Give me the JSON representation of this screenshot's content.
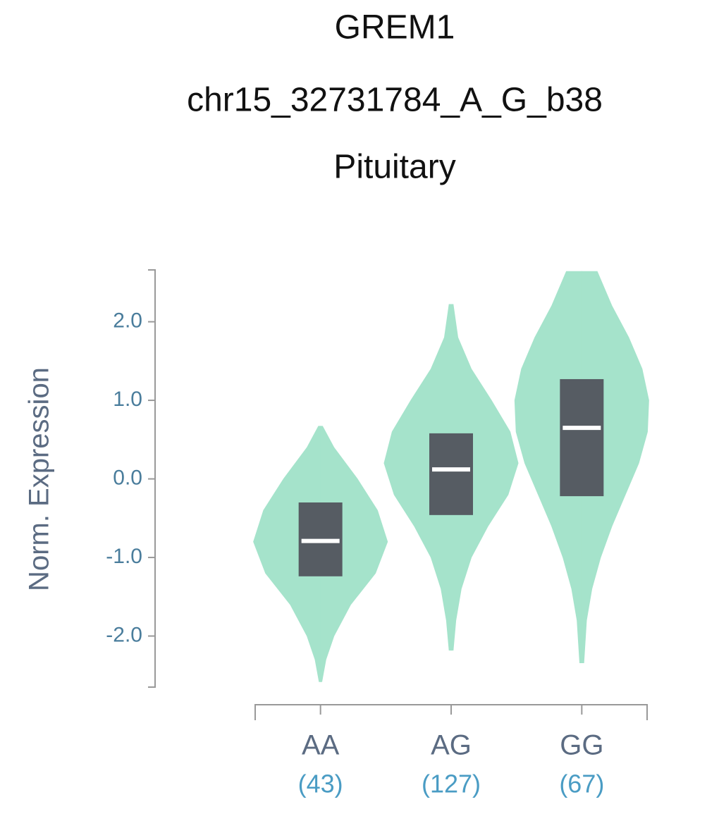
{
  "chart_data": {
    "type": "violin",
    "title": "GREM1",
    "subtitle": "chr15_32731784_A_G_b38",
    "tissue": "Pituitary",
    "y_label": "Norm. Expression",
    "categories": [
      "AA",
      "AG",
      "GG"
    ],
    "sample_sizes": [
      "(43)",
      "(127)",
      "(67)"
    ],
    "violin_color": "#a5e3cb",
    "box_color": "#565c63",
    "median_color": "#ffffff",
    "ylim": [
      -2.65,
      2.66
    ],
    "yticks": [
      {
        "value": 2,
        "label": "2.0"
      },
      {
        "value": 1,
        "label": "1.0"
      },
      {
        "value": 0,
        "label": "0.0"
      },
      {
        "value": -1,
        "label": "-1.0"
      },
      {
        "value": -2,
        "label": "-2.0"
      }
    ],
    "groups": [
      {
        "q1": -1.24,
        "median": -0.79,
        "q3": -0.3,
        "violin": {
          "y": [
            0.67,
            0.4,
            0,
            -0.4,
            -0.8,
            -1.2,
            -1.6,
            -2.0,
            -2.3,
            -2.58
          ],
          "density": [
            0.03,
            0.2,
            0.55,
            0.85,
            1.0,
            0.82,
            0.45,
            0.2,
            0.08,
            0.02
          ]
        }
      },
      {
        "q1": -0.46,
        "median": 0.12,
        "q3": 0.58,
        "violin": {
          "y": [
            2.22,
            1.8,
            1.4,
            1.0,
            0.6,
            0.2,
            -0.2,
            -0.6,
            -1.0,
            -1.4,
            -1.8,
            -2.18
          ],
          "density": [
            0.03,
            0.1,
            0.3,
            0.6,
            0.88,
            1.0,
            0.85,
            0.55,
            0.3,
            0.15,
            0.07,
            0.03
          ]
        }
      },
      {
        "q1": -0.22,
        "median": 0.65,
        "q3": 1.27,
        "violin": {
          "y": [
            2.64,
            2.2,
            1.8,
            1.4,
            1.0,
            0.6,
            0.2,
            -0.2,
            -0.6,
            -1.0,
            -1.4,
            -1.8,
            -2.34
          ],
          "density": [
            0.23,
            0.45,
            0.7,
            0.9,
            1.0,
            0.98,
            0.85,
            0.65,
            0.45,
            0.28,
            0.15,
            0.07,
            0.03
          ]
        }
      }
    ]
  }
}
